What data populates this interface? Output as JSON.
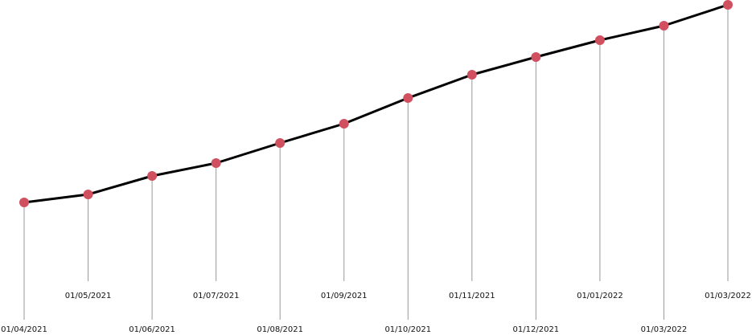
{
  "chart_data": {
    "type": "line",
    "categories": [
      "01/04/2021",
      "01/05/2021",
      "01/06/2021",
      "01/07/2021",
      "01/08/2021",
      "01/09/2021",
      "01/10/2021",
      "01/11/2021",
      "01/12/2021",
      "01/01/2022",
      "01/03/2022",
      "01/03/2022"
    ],
    "values": [
      148,
      158,
      181,
      197,
      222,
      246,
      278,
      307,
      329,
      350,
      368,
      394
    ],
    "ylim": [
      0,
      400
    ],
    "color": "#000000",
    "marker_color": "#d0505f"
  }
}
